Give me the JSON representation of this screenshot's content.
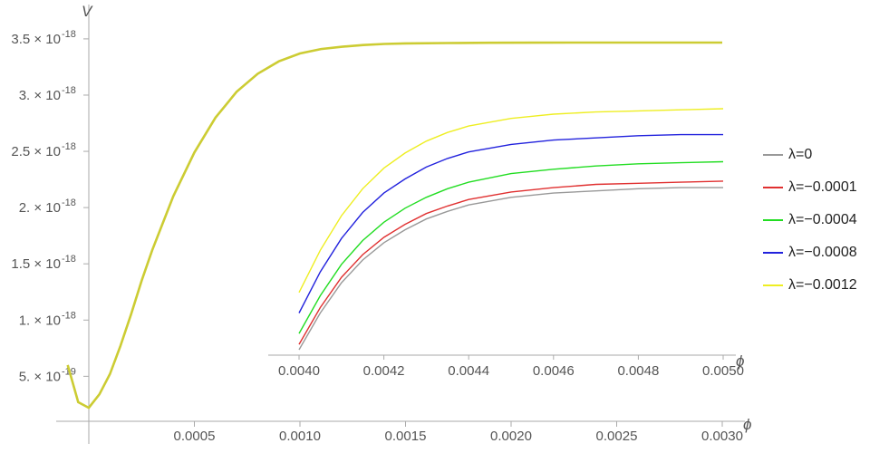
{
  "chart_data": {
    "type": "line",
    "main": {
      "ylabel": "V",
      "xlabel": "ϕ",
      "x_ticks": [
        "0.0005",
        "0.0010",
        "0.0015",
        "0.0020",
        "0.0025",
        "0.0030"
      ],
      "y_ticks": [
        {
          "mant": "5. ×",
          "exp": "-19"
        },
        {
          "mant": "1. ×",
          "exp": "-18"
        },
        {
          "mant": "1.5 ×",
          "exp": "-18"
        },
        {
          "mant": "2. ×",
          "exp": "-18"
        },
        {
          "mant": "2.5 ×",
          "exp": "-18"
        },
        {
          "mant": "3. ×",
          "exp": "-18"
        },
        {
          "mant": "3.5 ×",
          "exp": "-18"
        }
      ],
      "xlim": [
        -0.00012,
        0.003
      ],
      "ylim": [
        1e-19,
        3.6e-18
      ],
      "series": [
        {
          "name": "λ=-0.0012",
          "x": [
            -0.0001,
            -5e-05,
            0.0,
            5e-05,
            0.0001,
            0.00015,
            0.0002,
            0.00025,
            0.0003,
            0.0004,
            0.0005,
            0.0006,
            0.0007,
            0.0008,
            0.0009,
            0.001,
            0.0011,
            0.0012,
            0.0013,
            0.0014,
            0.0015,
            0.0017,
            0.0019,
            0.0021,
            0.0023,
            0.0025,
            0.0027,
            0.003
          ],
          "y": [
            6e-19,
            2.7e-19,
            2.2e-19,
            3.4e-19,
            5.2e-19,
            7.7e-19,
            1.05e-18,
            1.35e-18,
            1.62e-18,
            2.1e-18,
            2.49e-18,
            2.8e-18,
            3.03e-18,
            3.19e-18,
            3.3e-18,
            3.37e-18,
            3.41e-18,
            3.43e-18,
            3.445e-18,
            3.455e-18,
            3.46e-18,
            3.463e-18,
            3.465e-18,
            3.466e-18,
            3.467e-18,
            3.467e-18,
            3.467e-18,
            3.467e-18
          ]
        }
      ]
    },
    "inset": {
      "xlabel": "ϕ",
      "x_ticks": [
        "0.0040",
        "0.0042",
        "0.0044",
        "0.0046",
        "0.0048",
        "0.0050"
      ],
      "xlim": [
        0.004,
        0.005
      ],
      "ylim": [
        6e-19,
        3.2e-18
      ],
      "x": [
        0.004,
        0.00405,
        0.0041,
        0.00415,
        0.0042,
        0.00425,
        0.0043,
        0.00435,
        0.0044,
        0.0045,
        0.0046,
        0.0047,
        0.0048,
        0.0049,
        0.005
      ],
      "series": [
        {
          "name": "λ=0",
          "color": "#999999",
          "y": [
            6.5e-19,
            9.9e-19,
            1.27e-18,
            1.48e-18,
            1.64e-18,
            1.76e-18,
            1.86e-18,
            1.93e-18,
            1.99e-18,
            2.06e-18,
            2.1e-18,
            2.12e-18,
            2.14e-18,
            2.15e-18,
            2.15e-18
          ]
        },
        {
          "name": "λ=-0.0001",
          "color": "#e03030",
          "y": [
            7e-19,
            1.04e-18,
            1.32e-18,
            1.53e-18,
            1.69e-18,
            1.81e-18,
            1.91e-18,
            1.98e-18,
            2.04e-18,
            2.11e-18,
            2.15e-18,
            2.18e-18,
            2.19e-18,
            2.2e-18,
            2.21e-18
          ]
        },
        {
          "name": "λ=-0.0004",
          "color": "#22dd22",
          "y": [
            8e-19,
            1.15e-18,
            1.44e-18,
            1.66e-18,
            1.83e-18,
            1.96e-18,
            2.06e-18,
            2.14e-18,
            2.2e-18,
            2.28e-18,
            2.32e-18,
            2.35e-18,
            2.37e-18,
            2.38e-18,
            2.39e-18
          ]
        },
        {
          "name": "λ=-0.0008",
          "color": "#2222dd",
          "y": [
            9.9e-19,
            1.37e-18,
            1.68e-18,
            1.92e-18,
            2.1e-18,
            2.23e-18,
            2.34e-18,
            2.42e-18,
            2.48e-18,
            2.55e-18,
            2.59e-18,
            2.61e-18,
            2.63e-18,
            2.64e-18,
            2.64e-18
          ]
        },
        {
          "name": "λ=-0.0012",
          "color": "#eeee22",
          "y": [
            1.18e-18,
            1.57e-18,
            1.89e-18,
            2.14e-18,
            2.33e-18,
            2.47e-18,
            2.58e-18,
            2.66e-18,
            2.72e-18,
            2.79e-18,
            2.83e-18,
            2.85e-18,
            2.86e-18,
            2.87e-18,
            2.88e-18
          ]
        }
      ]
    },
    "legend_position": "right"
  },
  "legend": {
    "items": [
      {
        "label": "λ=0",
        "color": "#999999"
      },
      {
        "label": "λ=−0.0001",
        "color": "#e03030"
      },
      {
        "label": "λ=−0.0004",
        "color": "#22dd22"
      },
      {
        "label": "λ=−0.0008",
        "color": "#2222dd"
      },
      {
        "label": "λ=−0.0012",
        "color": "#eeee22"
      }
    ]
  },
  "colors": {
    "axis": "#aaaaaa",
    "main_curve": "#cccc33",
    "text": "#555555"
  }
}
